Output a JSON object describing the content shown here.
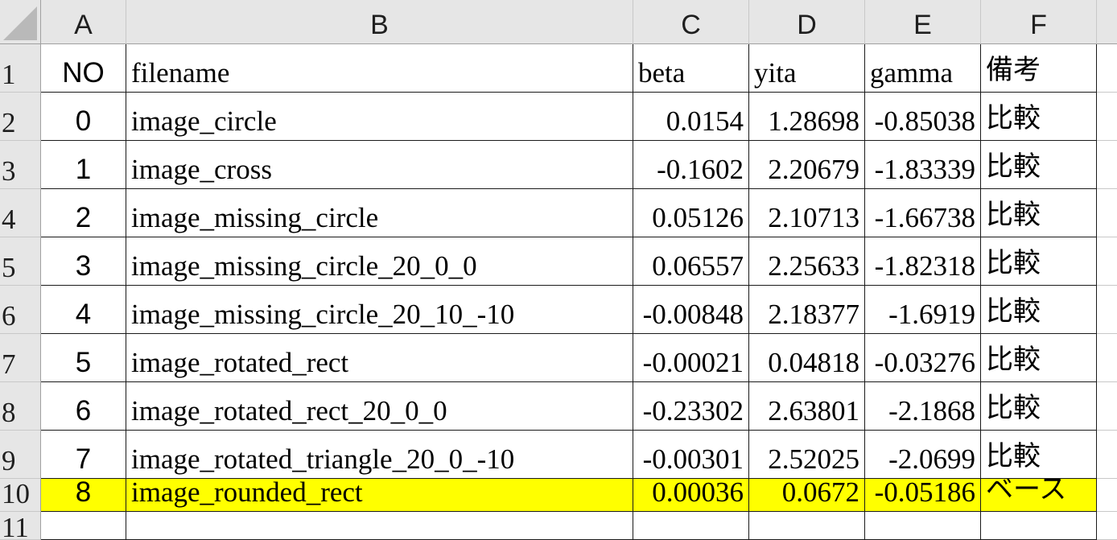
{
  "columns": [
    "A",
    "B",
    "C",
    "D",
    "E",
    "F"
  ],
  "row_numbers": [
    "1",
    "2",
    "3",
    "4",
    "5",
    "6",
    "7",
    "8",
    "9",
    "10",
    "11"
  ],
  "header_row": {
    "no": "NO",
    "filename": "filename",
    "beta": "beta",
    "yita": "yita",
    "gamma": "gamma",
    "note": "備考"
  },
  "rows": [
    {
      "no": "0",
      "filename": "image_circle",
      "beta": "0.0154",
      "yita": "1.28698",
      "gamma": "-0.85038",
      "note": "比較"
    },
    {
      "no": "1",
      "filename": "image_cross",
      "beta": "-0.1602",
      "yita": "2.20679",
      "gamma": "-1.83339",
      "note": "比較"
    },
    {
      "no": "2",
      "filename": "image_missing_circle",
      "beta": "0.05126",
      "yita": "2.10713",
      "gamma": "-1.66738",
      "note": "比較"
    },
    {
      "no": "3",
      "filename": "image_missing_circle_20_0_0",
      "beta": "0.06557",
      "yita": "2.25633",
      "gamma": "-1.82318",
      "note": "比較"
    },
    {
      "no": "4",
      "filename": "image_missing_circle_20_10_-10",
      "beta": "-0.00848",
      "yita": "2.18377",
      "gamma": "-1.6919",
      "note": "比較"
    },
    {
      "no": "5",
      "filename": "image_rotated_rect",
      "beta": "-0.00021",
      "yita": "0.04818",
      "gamma": "-0.03276",
      "note": "比較"
    },
    {
      "no": "6",
      "filename": "image_rotated_rect_20_0_0",
      "beta": "-0.23302",
      "yita": "2.63801",
      "gamma": "-2.1868",
      "note": "比較"
    },
    {
      "no": "7",
      "filename": "image_rotated_triangle_20_0_-10",
      "beta": "-0.00301",
      "yita": "2.52025",
      "gamma": "-2.0699",
      "note": "比較"
    },
    {
      "no": "8",
      "filename": "image_rounded_rect",
      "beta": "0.00036",
      "yita": "0.0672",
      "gamma": "-0.05186",
      "note": "ベース",
      "highlight": true
    }
  ],
  "colors": {
    "header_bg": "#e6e6e6",
    "highlight": "#ffff00",
    "grid": "#1a1a1a"
  }
}
